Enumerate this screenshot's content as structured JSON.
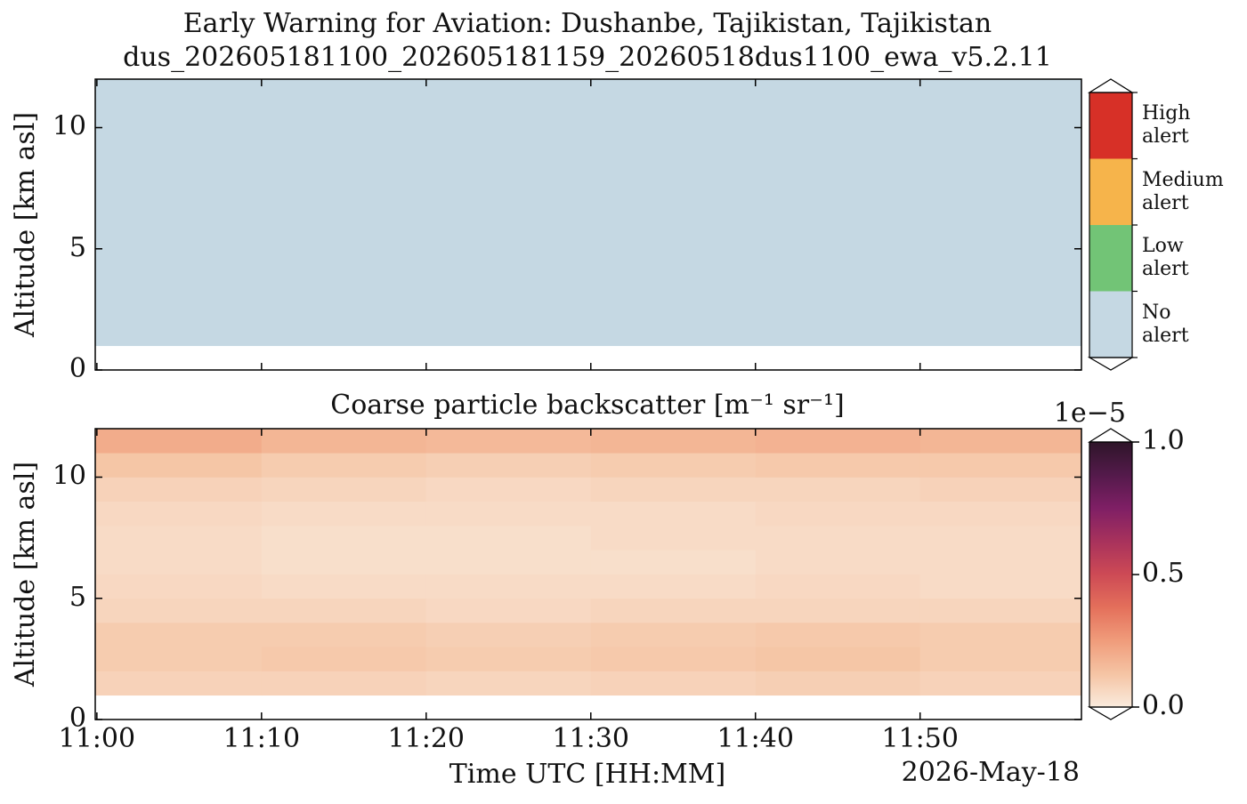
{
  "chart_data": [
    {
      "type": "heatmap",
      "title": "Early Warning for Aviation: Dushanbe, Tajikistan, Tajikistan",
      "subtitle": "dus_202605181100_202605181159_20260518dus1100_ewa_v5.2.11",
      "ylabel": "Altitude [km asl]",
      "x_bins": [
        -0.1,
        59.8
      ],
      "y_bins": [
        1,
        12
      ],
      "values": [
        [
          "No alert"
        ]
      ],
      "xlim": [
        -0.1,
        59.8
      ],
      "xticks": [
        0,
        10,
        20,
        30,
        40,
        50
      ],
      "ylim": [
        0,
        12
      ],
      "yticks": [
        0,
        5,
        10
      ],
      "colorbar": {
        "categories": [
          "High alert",
          "Medium alert",
          "Low alert",
          "No alert"
        ],
        "colors": [
          "#d73027",
          "#f6b44b",
          "#72c476",
          "#c5d8e3"
        ],
        "extend": "both"
      }
    },
    {
      "type": "heatmap",
      "title": "Coarse particle backscatter [m⁻¹ sr⁻¹]",
      "ylabel": "Altitude [km asl]",
      "xlabel": "Time UTC [HH:MM]",
      "date": "2026-May-18",
      "x_bins": [
        -0.1,
        10,
        20,
        30,
        40,
        50,
        59.8
      ],
      "y_bins": [
        1,
        2,
        3,
        4,
        5,
        6,
        7,
        8,
        9,
        10,
        11,
        12
      ],
      "values": [
        [
          0.08,
          0.08,
          0.07,
          0.08,
          0.09,
          0.08
        ],
        [
          0.1,
          0.11,
          0.1,
          0.11,
          0.12,
          0.1
        ],
        [
          0.1,
          0.1,
          0.09,
          0.1,
          0.11,
          0.1
        ],
        [
          0.07,
          0.07,
          0.06,
          0.07,
          0.07,
          0.07
        ],
        [
          0.06,
          0.05,
          0.05,
          0.05,
          0.06,
          0.05
        ],
        [
          0.05,
          0.04,
          0.04,
          0.04,
          0.05,
          0.05
        ],
        [
          0.05,
          0.04,
          0.04,
          0.05,
          0.05,
          0.05
        ],
        [
          0.06,
          0.05,
          0.05,
          0.05,
          0.06,
          0.06
        ],
        [
          0.08,
          0.07,
          0.06,
          0.07,
          0.07,
          0.08
        ],
        [
          0.12,
          0.1,
          0.09,
          0.1,
          0.11,
          0.11
        ],
        [
          0.2,
          0.17,
          0.16,
          0.17,
          0.18,
          0.17
        ]
      ],
      "xlim": [
        -0.1,
        59.8
      ],
      "xticks": [
        {
          "value": 0,
          "label": "11:00"
        },
        {
          "value": 10,
          "label": "11:10"
        },
        {
          "value": 20,
          "label": "11:20"
        },
        {
          "value": 30,
          "label": "11:30"
        },
        {
          "value": 40,
          "label": "11:40"
        },
        {
          "value": 50,
          "label": "11:50"
        }
      ],
      "ylim": [
        0,
        12
      ],
      "yticks": [
        0,
        5,
        10
      ],
      "colorbar": {
        "lim": [
          0,
          1
        ],
        "ticks": [
          {
            "value": 0,
            "label": "0.0"
          },
          0.5,
          {
            "value": 1,
            "label": "1.0"
          }
        ],
        "offset_text": "1e−5",
        "extend": "both",
        "colors": [
          "#faebdd",
          "#f5c4a4",
          "#f09c7b",
          "#e4705b",
          "#cd4a55",
          "#a8325c",
          "#7f1f65",
          "#541a4b",
          "#2e1529"
        ]
      }
    }
  ]
}
